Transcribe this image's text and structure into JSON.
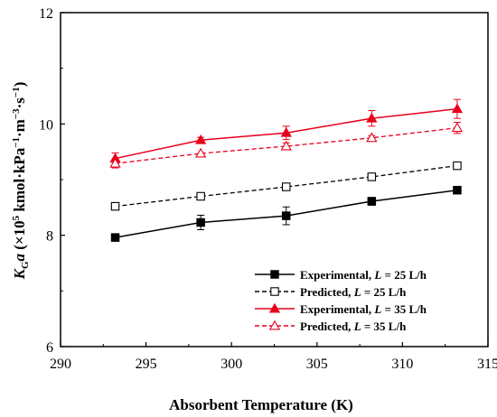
{
  "chart_data": {
    "type": "line",
    "xlabel": "Absorbent Temperature (K)",
    "ylabel": "K_G a (×10^5 kmol·kPa^−1·m^−3·s^−1)",
    "xlim": [
      290,
      315
    ],
    "ylim": [
      6,
      12
    ],
    "xticks": [
      290,
      295,
      300,
      305,
      310,
      315
    ],
    "yticks": [
      6,
      8,
      10,
      12
    ],
    "grid": false,
    "legend_position": "bottom-right",
    "series": [
      {
        "name": "Experimental, L = 25 L/h",
        "legend_parts": [
          "Experimental, ",
          "L",
          " = 25 L/h"
        ],
        "color": "#000000",
        "marker": "square-filled",
        "line": "solid",
        "x": [
          293.2,
          298.2,
          303.2,
          308.2,
          313.2
        ],
        "y": [
          7.96,
          8.23,
          8.35,
          8.61,
          8.81
        ],
        "err": [
          0.05,
          0.13,
          0.16,
          0.07,
          0.04
        ]
      },
      {
        "name": "Predicted, L = 25 L/h",
        "legend_parts": [
          "Predicted, ",
          "L",
          " = 25 L/h"
        ],
        "color": "#000000",
        "marker": "square-open",
        "line": "dashed",
        "x": [
          293.2,
          298.2,
          303.2,
          308.2,
          313.2
        ],
        "y": [
          8.52,
          8.7,
          8.87,
          9.05,
          9.25
        ],
        "err": []
      },
      {
        "name": "Experimental, L = 35 L/h",
        "legend_parts": [
          "Experimental, ",
          "L",
          " = 35 L/h"
        ],
        "color": "#e8001c",
        "marker": "triangle-filled",
        "line": "solid",
        "x": [
          293.2,
          298.2,
          303.2,
          308.2,
          313.2
        ],
        "y": [
          9.38,
          9.71,
          9.84,
          10.1,
          10.27
        ],
        "err": [
          0.1,
          0.05,
          0.12,
          0.14,
          0.17
        ]
      },
      {
        "name": "Predicted, L = 35 L/h",
        "legend_parts": [
          "Predicted, ",
          "L",
          " = 35 L/h"
        ],
        "color": "#e8001c",
        "marker": "triangle-open",
        "line": "dashed",
        "x": [
          293.2,
          298.2,
          303.2,
          308.2,
          313.2
        ],
        "y": [
          9.29,
          9.47,
          9.6,
          9.75,
          9.93
        ],
        "err": [
          0.08,
          0,
          0.06,
          0.04,
          0.1
        ]
      }
    ]
  }
}
